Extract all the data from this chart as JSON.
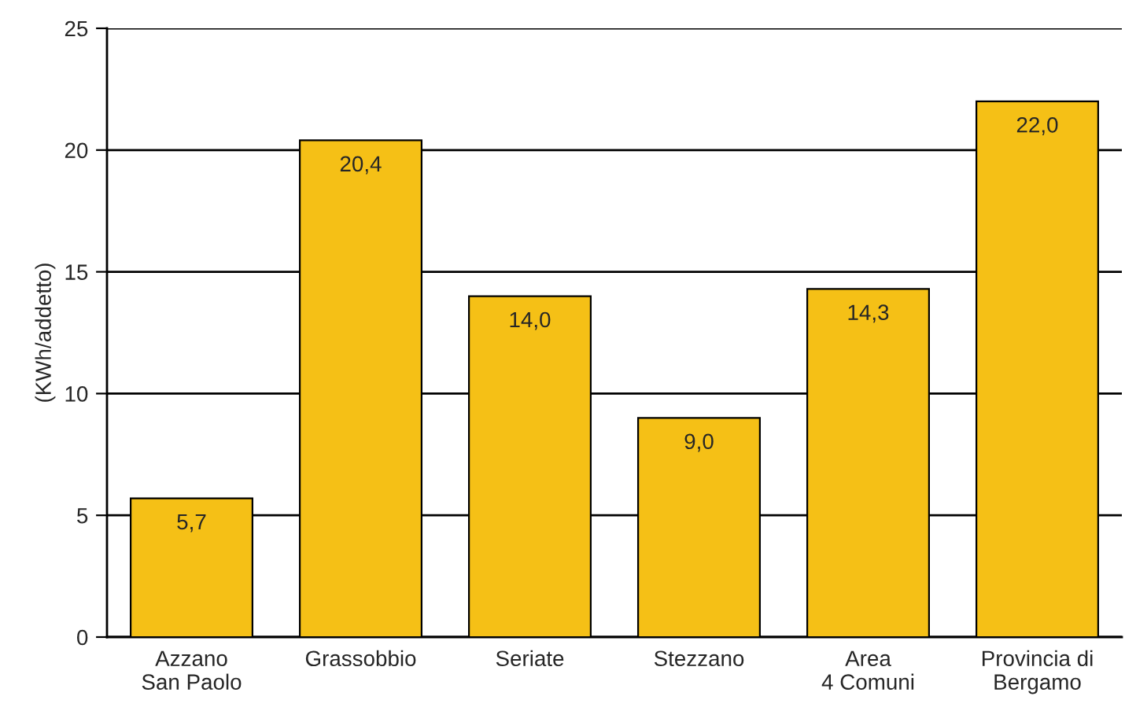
{
  "chart_data": {
    "type": "bar",
    "ylabel": "(KWh/addetto)",
    "categories": [
      "Azzano\nSan Paolo",
      "Grassobbio",
      "Seriate",
      "Stezzano",
      "Area\n4 Comuni",
      "Provincia di\nBergamo"
    ],
    "values": [
      5.7,
      20.4,
      14.0,
      9.0,
      14.3,
      22.0
    ],
    "value_labels": [
      "5,7",
      "20,4",
      "14,0",
      "9,0",
      "14,3",
      "22,0"
    ],
    "color": "#f5c016",
    "ylim": [
      0,
      25
    ],
    "yticks": [
      0,
      5,
      10,
      15,
      20,
      25
    ],
    "grid": "y",
    "legend": false
  }
}
